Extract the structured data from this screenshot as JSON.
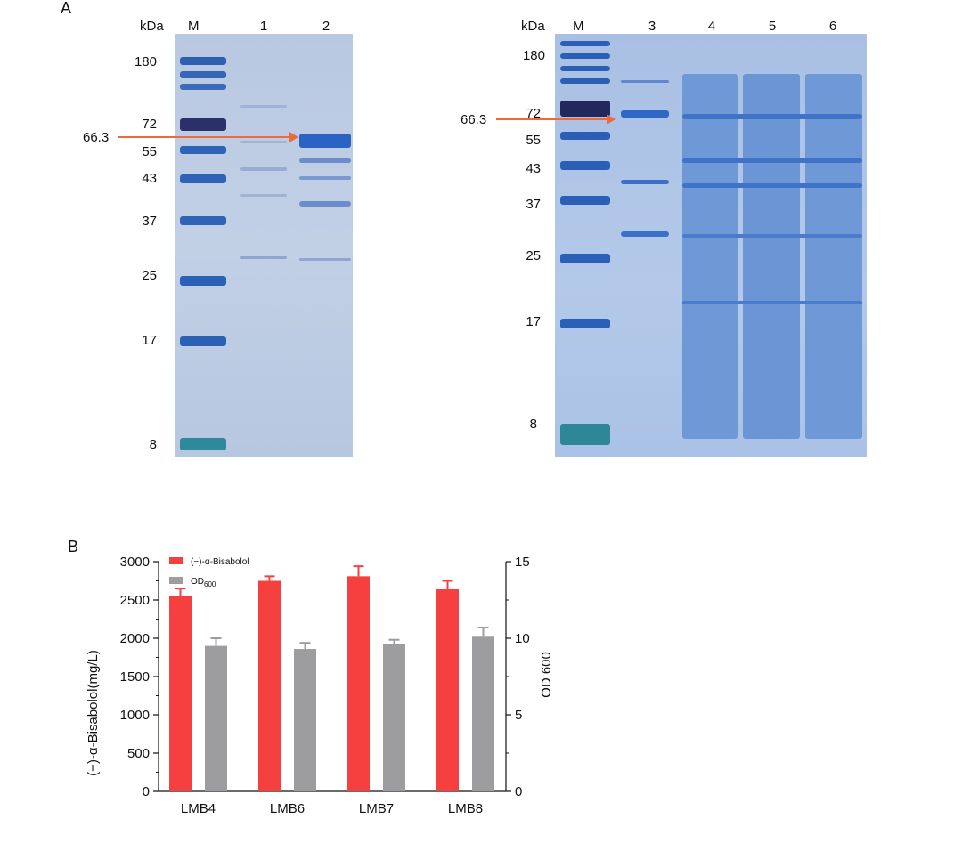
{
  "panel_a": {
    "label": "A",
    "gel_left": {
      "kda_label": "kDa",
      "marker_label": "M",
      "lanes": [
        "1",
        "2"
      ],
      "mw_labels": [
        "180",
        "72",
        "55",
        "43",
        "37",
        "25",
        "17",
        "8"
      ],
      "arrow_label": "66.3"
    },
    "gel_right": {
      "kda_label": "kDa",
      "marker_label": "M",
      "lanes": [
        "3",
        "4",
        "5",
        "6"
      ],
      "mw_labels": [
        "180",
        "72",
        "55",
        "43",
        "37",
        "25",
        "17",
        "8"
      ],
      "arrow_label": "66.3"
    },
    "arrow_color": "#ef6a3a"
  },
  "panel_b": {
    "label": "B"
  },
  "chart_data": {
    "type": "bar",
    "categories": [
      "LMB4",
      "LMB6",
      "LMB7",
      "LMB8"
    ],
    "series": [
      {
        "name": "(−)-α-Bisabolol",
        "axis": "left",
        "color": "#f64040",
        "values": [
          2550,
          2750,
          2810,
          2640
        ],
        "errors": [
          100,
          60,
          130,
          110
        ]
      },
      {
        "name": "OD600",
        "axis": "right",
        "color": "#9d9d9f",
        "values": [
          9.5,
          9.3,
          9.6,
          10.1
        ],
        "errors": [
          0.5,
          0.4,
          0.3,
          0.6
        ]
      }
    ],
    "ylabel": "(−)-α-Bisabolol(mg/L)",
    "ylabel_right": "OD 600",
    "ylim": [
      0,
      3000
    ],
    "ylim_right": [
      0,
      15
    ],
    "yticks": [
      "0",
      "500",
      "1000",
      "1500",
      "2000",
      "2500",
      "3000"
    ],
    "yticks_right": [
      "0",
      "5",
      "10",
      "15"
    ],
    "legend": [
      "(−)-α-Bisabolol",
      "OD"
    ],
    "legend_sub": "600",
    "legend_position": "top-left",
    "grid": false
  }
}
